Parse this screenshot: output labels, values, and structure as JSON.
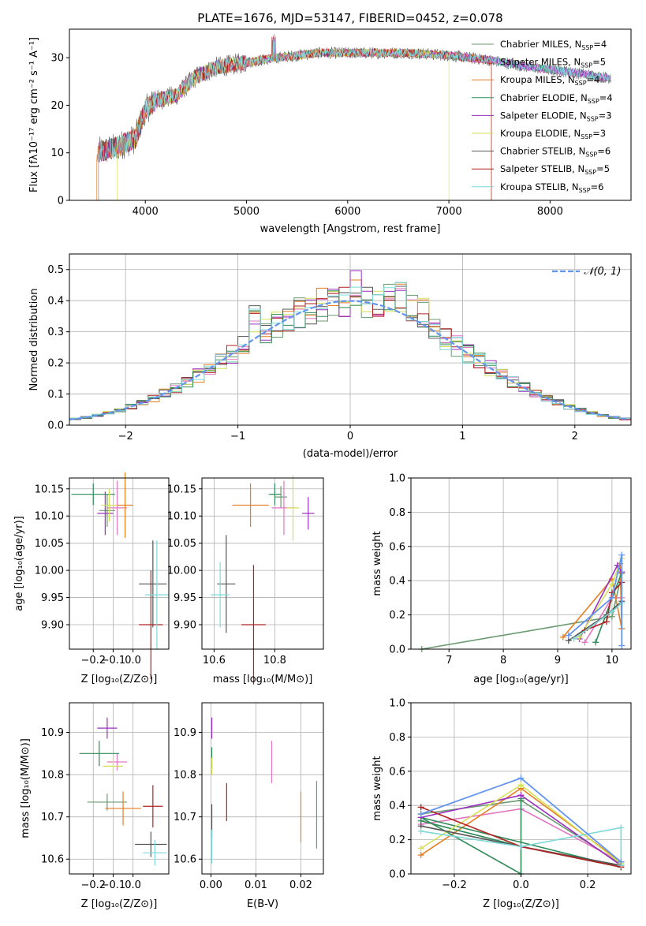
{
  "colors": {
    "grid": "#b0b0b0",
    "normal_line": "#6495ED"
  },
  "models": [
    {
      "name": "Chabrier MILES",
      "nssp": "4",
      "color": "#6a9a70"
    },
    {
      "name": "Salpeter MILES",
      "nssp": "5",
      "color": "#e377c2"
    },
    {
      "name": "Kroupa MILES",
      "nssp": "4",
      "color": "#e67e22"
    },
    {
      "name": "Chabrier ELODIE",
      "nssp": "4",
      "color": "#2e8b57"
    },
    {
      "name": "Salpeter ELODIE",
      "nssp": "3",
      "color": "#9b30c0"
    },
    {
      "name": "Kroupa ELODIE",
      "nssp": "3",
      "color": "#d4e157"
    },
    {
      "name": "Chabrier STELIB",
      "nssp": "6",
      "color": "#555555"
    },
    {
      "name": "Salpeter STELIB",
      "nssp": "5",
      "color": "#b22222"
    },
    {
      "name": "Kroupa STELIB",
      "nssp": "6",
      "color": "#7fd8d8"
    }
  ],
  "legend_suffix": {
    "n": "N",
    "sub": "SSP",
    "eq": "=4"
  },
  "chart_data": [
    {
      "id": "spectrum",
      "type": "line",
      "title": "PLATE=1676, MJD=53147, FIBERID=0452, z=0.078",
      "xlabel": "wavelength [Angstrom, rest frame]",
      "ylabel": "Flux [fλ10⁻¹⁷ erg cm⁻² s⁻¹ A⁻¹]",
      "xlim": [
        3250,
        8800
      ],
      "ylim": [
        0,
        36
      ],
      "xticks": [
        4000,
        5000,
        6000,
        7000,
        8000
      ],
      "yticks": [
        0,
        10,
        20,
        30
      ],
      "continuum": [
        [
          3500,
          10
        ],
        [
          3700,
          11
        ],
        [
          3900,
          13
        ],
        [
          4000,
          19
        ],
        [
          4100,
          21
        ],
        [
          4300,
          22
        ],
        [
          4500,
          26
        ],
        [
          4700,
          28
        ],
        [
          5000,
          29
        ],
        [
          5300,
          30
        ],
        [
          5700,
          31
        ],
        [
          6200,
          31
        ],
        [
          6600,
          31
        ],
        [
          7000,
          30.5
        ],
        [
          7400,
          29.5
        ],
        [
          7800,
          28
        ],
        [
          8200,
          27
        ],
        [
          8500,
          26
        ],
        [
          8700,
          25.5
        ]
      ],
      "model_ranges": [
        [
          3540,
          8600
        ],
        [
          3540,
          8600
        ],
        [
          3520,
          7420
        ],
        [
          3540,
          8600
        ],
        [
          3540,
          8600
        ],
        [
          3720,
          7000
        ],
        [
          3540,
          8600
        ],
        [
          3540,
          7420
        ],
        [
          3540,
          8600
        ]
      ]
    },
    {
      "id": "residuals",
      "type": "histogram",
      "xlabel": "(data-model)/error",
      "ylabel": "Normed distribution",
      "xlim": [
        -2.5,
        2.5
      ],
      "ylim": [
        0,
        0.55
      ],
      "xticks": [
        -2,
        -1,
        0,
        1,
        2
      ],
      "yticks": [
        0.0,
        0.1,
        0.2,
        0.3,
        0.4,
        0.5
      ],
      "bin_width": 0.1,
      "legend": "𝒩(0, 1)"
    },
    {
      "id": "age_vs_Z",
      "type": "errorbar",
      "xlabel": "Z [log₁₀(Z/Z⊙)]",
      "ylabel": "age  [log₁₀(age/yr)]",
      "xlim": [
        -0.32,
        0.18
      ],
      "ylim": [
        9.855,
        10.17
      ],
      "xticks": [
        -0.2,
        -0.1,
        0.0
      ],
      "yticks": [
        9.9,
        9.95,
        10.0,
        10.05,
        10.1,
        10.15
      ],
      "points": [
        {
          "m": 0,
          "x": -0.13,
          "y": 10.11,
          "xe": 0.04,
          "ye": 0.03
        },
        {
          "m": 1,
          "x": -0.08,
          "y": 10.115,
          "xe": 0.05,
          "ye": 0.05
        },
        {
          "m": 2,
          "x": -0.04,
          "y": 10.12,
          "xe": 0.04,
          "ye": 0.06
        },
        {
          "m": 3,
          "x": -0.2,
          "y": 10.14,
          "xe": 0.11,
          "ye": 0.02
        },
        {
          "m": 4,
          "x": -0.14,
          "y": 10.105,
          "xe": 0.04,
          "ye": 0.04
        },
        {
          "m": 5,
          "x": -0.12,
          "y": 10.12,
          "xe": 0.04,
          "ye": 0.03
        },
        {
          "m": 6,
          "x": 0.1,
          "y": 9.975,
          "xe": 0.07,
          "ye": 0.08
        },
        {
          "m": 7,
          "x": 0.09,
          "y": 9.9,
          "xe": 0.06,
          "ye": 0.1
        },
        {
          "m": 8,
          "x": 0.12,
          "y": 9.955,
          "xe": 0.06,
          "ye": 0.1
        }
      ]
    },
    {
      "id": "age_vs_mass",
      "type": "errorbar",
      "xlabel": "mass [log₁₀(M/M⊙)]",
      "ylabel": "",
      "xlim": [
        10.56,
        10.96
      ],
      "ylim": [
        9.855,
        10.17
      ],
      "xticks": [
        10.6,
        10.8
      ],
      "yticks": [
        9.9,
        9.95,
        10.0,
        10.05,
        10.1,
        10.15
      ],
      "points": [
        {
          "m": 0,
          "x": 10.82,
          "y": 10.135,
          "xe": 0.02,
          "ye": 0.02
        },
        {
          "m": 1,
          "x": 10.83,
          "y": 10.115,
          "xe": 0.04,
          "ye": 0.05
        },
        {
          "m": 2,
          "x": 10.72,
          "y": 10.12,
          "xe": 0.06,
          "ye": 0.04
        },
        {
          "m": 3,
          "x": 10.8,
          "y": 10.14,
          "xe": 0.02,
          "ye": 0.02
        },
        {
          "m": 4,
          "x": 10.91,
          "y": 10.105,
          "xe": 0.02,
          "ye": 0.03
        },
        {
          "m": 5,
          "x": 10.86,
          "y": 10.115,
          "xe": 0.02,
          "ye": 0.06
        },
        {
          "m": 6,
          "x": 10.64,
          "y": 9.975,
          "xe": 0.03,
          "ye": 0.09
        },
        {
          "m": 7,
          "x": 10.73,
          "y": 9.9,
          "xe": 0.04,
          "ye": 0.11
        },
        {
          "m": 8,
          "x": 10.62,
          "y": 9.955,
          "xe": 0.03,
          "ye": 0.06
        }
      ]
    },
    {
      "id": "mass_weight_vs_age",
      "type": "line",
      "xlabel": "age  [log₁₀(age/yr)]",
      "ylabel": "mass weight",
      "xlim": [
        6.3,
        10.35
      ],
      "ylim": [
        0,
        1
      ],
      "xticks": [
        7,
        8,
        9,
        10
      ],
      "yticks": [
        0.0,
        0.2,
        0.4,
        0.6,
        0.8,
        1.0
      ],
      "series": [
        {
          "m": 0,
          "points": [
            [
              6.5,
              0.0
            ],
            [
              10.0,
              0.19
            ],
            [
              10.18,
              0.44
            ]
          ]
        },
        {
          "m": 1,
          "points": [
            [
              9.5,
              0.04
            ],
            [
              10.0,
              0.3
            ],
            [
              10.18,
              0.3
            ]
          ]
        },
        {
          "m": 2,
          "points": [
            [
              9.1,
              0.07
            ],
            [
              10.0,
              0.41
            ],
            [
              10.18,
              0.12
            ],
            [
              10.15,
              0.5
            ]
          ]
        },
        {
          "m": 3,
          "points": [
            [
              9.7,
              0.04
            ],
            [
              10.18,
              0.45
            ]
          ]
        },
        {
          "m": 4,
          "points": [
            [
              9.4,
              0.06
            ],
            [
              10.1,
              0.49
            ],
            [
              10.18,
              0.45
            ]
          ]
        },
        {
          "m": 5,
          "points": [
            [
              9.4,
              0.07
            ],
            [
              10.0,
              0.38
            ],
            [
              10.18,
              0.53
            ]
          ]
        },
        {
          "m": 6,
          "points": [
            [
              9.2,
              0.05
            ],
            [
              9.9,
              0.2
            ],
            [
              10.18,
              0.28
            ]
          ]
        },
        {
          "m": 7,
          "points": [
            [
              9.5,
              0.11
            ],
            [
              9.9,
              0.16
            ],
            [
              10.0,
              0.33
            ],
            [
              10.18,
              0.39
            ]
          ]
        },
        {
          "m": 8,
          "points": [
            [
              9.3,
              0.06
            ],
            [
              10.0,
              0.22
            ],
            [
              10.18,
              0.27
            ]
          ]
        }
      ],
      "blue_line": [
        [
          9.2,
          0.08
        ],
        [
          10.0,
          0.3
        ],
        [
          10.18,
          0.55
        ],
        [
          10.18,
          0.02
        ]
      ]
    },
    {
      "id": "mass_vs_Z",
      "type": "errorbar",
      "xlabel": "Z [log₁₀(Z/Z⊙)]",
      "ylabel": "mass [log₁₀(M/M⊙)]",
      "xlim": [
        -0.32,
        0.18
      ],
      "ylim": [
        10.565,
        10.97
      ],
      "xticks": [
        -0.2,
        -0.1,
        0.0
      ],
      "yticks": [
        10.6,
        10.7,
        10.8,
        10.9
      ],
      "points": [
        {
          "m": 0,
          "x": -0.13,
          "y": 10.735,
          "xe": 0.1,
          "ye": 0.02
        },
        {
          "m": 1,
          "x": -0.08,
          "y": 10.83,
          "xe": 0.05,
          "ye": 0.02
        },
        {
          "m": 2,
          "x": -0.05,
          "y": 10.72,
          "xe": 0.09,
          "ye": 0.04
        },
        {
          "m": 3,
          "x": -0.17,
          "y": 10.85,
          "xe": 0.1,
          "ye": 0.03
        },
        {
          "m": 4,
          "x": -0.13,
          "y": 10.91,
          "xe": 0.05,
          "ye": 0.025
        },
        {
          "m": 5,
          "x": -0.1,
          "y": 10.82,
          "xe": 0.05,
          "ye": 0.02
        },
        {
          "m": 6,
          "x": 0.09,
          "y": 10.635,
          "xe": 0.08,
          "ye": 0.03
        },
        {
          "m": 7,
          "x": 0.1,
          "y": 10.725,
          "xe": 0.05,
          "ye": 0.05
        },
        {
          "m": 8,
          "x": 0.11,
          "y": 10.615,
          "xe": 0.06,
          "ye": 0.03
        }
      ]
    },
    {
      "id": "mass_vs_ebv",
      "type": "errorbar",
      "xlabel": "E(B-V)",
      "ylabel": "",
      "xlim": [
        -0.002,
        0.025
      ],
      "ylim": [
        10.565,
        10.97
      ],
      "xticks": [
        0.0,
        0.01,
        0.02
      ],
      "xtick_labels": [
        "0.00",
        "0.01",
        "0.02"
      ],
      "yticks": [
        10.6,
        10.7,
        10.8,
        10.9
      ],
      "points": [
        {
          "m": 0,
          "x": 0.0235,
          "y": 10.705,
          "xe": 0,
          "ye": 0.08
        },
        {
          "m": 1,
          "x": 0.0135,
          "y": 10.83,
          "xe": 0,
          "ye": 0.05
        },
        {
          "m": 2,
          "x": 0.02,
          "y": 10.7,
          "xe": 0,
          "ye": 0.06
        },
        {
          "m": 3,
          "x": 0.0002,
          "y": 10.84,
          "xe": 0,
          "ye": 0.025
        },
        {
          "m": 4,
          "x": 0.0002,
          "y": 10.91,
          "xe": 0,
          "ye": 0.025
        },
        {
          "m": 5,
          "x": 0.0002,
          "y": 10.82,
          "xe": 0,
          "ye": 0.02
        },
        {
          "m": 6,
          "x": 0.0002,
          "y": 10.69,
          "xe": 0,
          "ye": 0.04
        },
        {
          "m": 7,
          "x": 0.0035,
          "y": 10.735,
          "xe": 0,
          "ye": 0.045
        },
        {
          "m": 8,
          "x": 0.0002,
          "y": 10.63,
          "xe": 0,
          "ye": 0.04
        }
      ]
    },
    {
      "id": "mass_weight_vs_Z",
      "type": "line",
      "xlabel": "Z [log₁₀(Z/Z⊙)]",
      "ylabel": "mass weight",
      "xlim": [
        -0.33,
        0.33
      ],
      "ylim": [
        0,
        1
      ],
      "xticks": [
        -0.2,
        0.0,
        0.2
      ],
      "yticks": [
        0.0,
        0.2,
        0.4,
        0.6,
        0.8,
        1.0
      ],
      "series": [
        {
          "m": 0,
          "points": [
            [
              -0.3,
              0.35
            ],
            [
              0.0,
              0.43
            ],
            [
              0.3,
              0.06
            ]
          ]
        },
        {
          "m": 1,
          "points": [
            [
              -0.3,
              0.29
            ],
            [
              0.0,
              0.38
            ],
            [
              0.3,
              0.07
            ]
          ]
        },
        {
          "m": 2,
          "points": [
            [
              -0.3,
              0.11
            ],
            [
              0.0,
              0.5
            ],
            [
              0.3,
              0.07
            ]
          ]
        },
        {
          "m": 3,
          "points": [
            [
              -0.3,
              0.31
            ],
            [
              0.0,
              0.16
            ],
            [
              0.3,
              0.04
            ],
            [
              -0.3,
              0.33
            ],
            [
              0.0,
              0.0
            ],
            [
              0.0,
              0.44
            ]
          ]
        },
        {
          "m": 4,
          "points": [
            [
              -0.3,
              0.33
            ],
            [
              0.0,
              0.46
            ],
            [
              0.3,
              0.05
            ]
          ]
        },
        {
          "m": 5,
          "points": [
            [
              -0.3,
              0.15
            ],
            [
              0.0,
              0.52
            ],
            [
              0.3,
              0.06
            ]
          ]
        },
        {
          "m": 6,
          "points": [
            [
              -0.3,
              0.28
            ],
            [
              0.0,
              0.16
            ],
            [
              0.3,
              0.05
            ]
          ]
        },
        {
          "m": 7,
          "points": [
            [
              -0.3,
              0.39
            ],
            [
              0.0,
              0.16
            ],
            [
              0.3,
              0.04
            ]
          ]
        },
        {
          "m": 8,
          "points": [
            [
              -0.3,
              0.25
            ],
            [
              0.0,
              0.16
            ],
            [
              0.3,
              0.27
            ],
            [
              0.3,
              0.05
            ]
          ]
        }
      ],
      "blue_line": [
        [
          -0.3,
          0.35
        ],
        [
          0.0,
          0.56
        ],
        [
          0.3,
          0.07
        ]
      ]
    }
  ]
}
